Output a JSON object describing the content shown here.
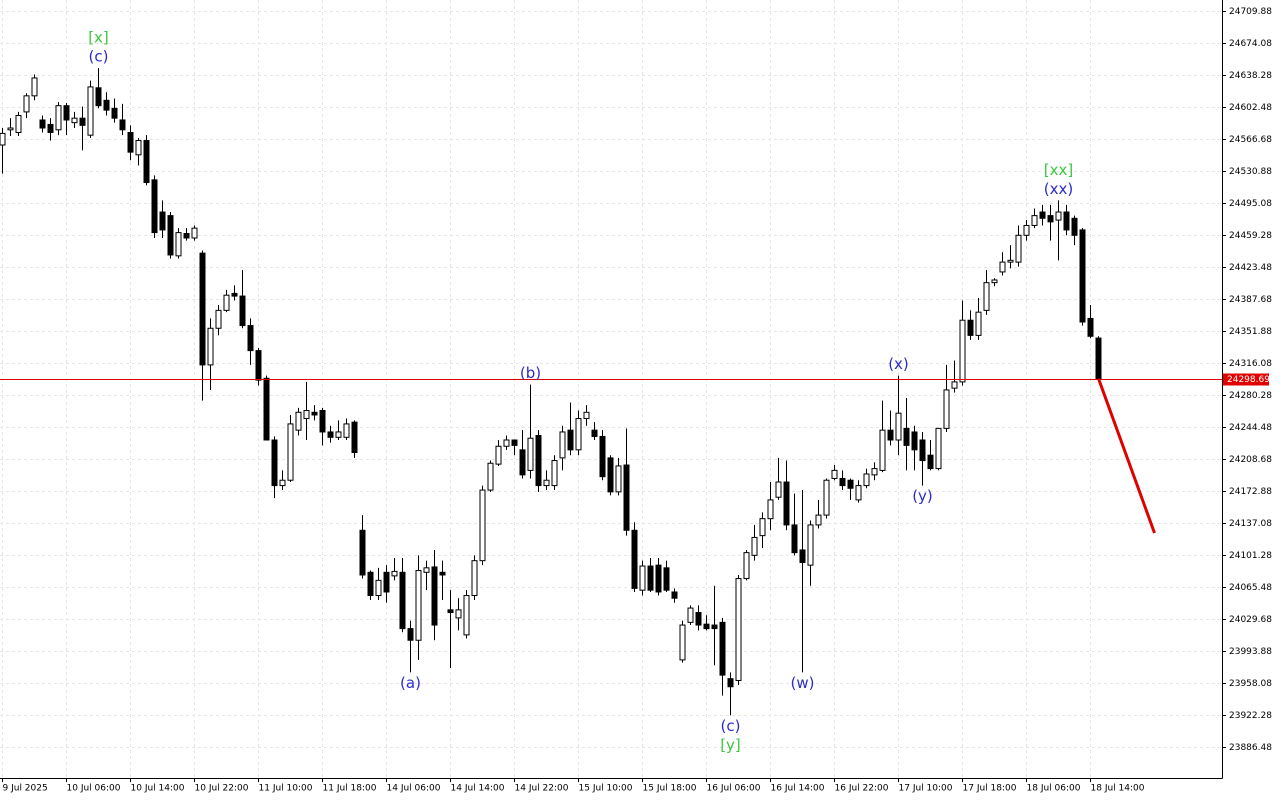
{
  "chart_data": {
    "type": "candlestick",
    "candles": {
      "open": [
        24560,
        24577,
        24574,
        24597,
        24615,
        24588,
        24583,
        24577,
        24604,
        24585,
        24590,
        24571,
        24624,
        24610,
        24601,
        24588,
        24574,
        24549,
        24565,
        24521,
        24485,
        24481,
        24436,
        24461,
        24456,
        24439,
        24314,
        24355,
        24375,
        24394,
        24391,
        24358,
        24330,
        24299,
        24230,
        24179,
        24185,
        24241,
        24254,
        24261,
        24263,
        24239,
        24233,
        24233,
        24250,
        24129,
        24082,
        24056,
        24082,
        24078,
        24082,
        24019,
        24006,
        24082,
        24088,
        24082,
        24040,
        24031,
        24012,
        24056,
        24095,
        24174,
        24203,
        24223,
        24230,
        24219,
        24196,
        24235,
        24179,
        24179,
        24210,
        24241,
        24219,
        24254,
        24241,
        24234,
        24210,
        24172,
        24202,
        24129,
        24062,
        24089,
        24090,
        24087,
        24060,
        23984,
        24026,
        24037,
        24024,
        24023,
        24026,
        23963,
        23961,
        24075,
        24101,
        24123,
        24142,
        24166,
        24183,
        24135,
        24107,
        24090,
        24135,
        24146,
        24187,
        24187,
        24185,
        24163,
        24179,
        24191,
        24196,
        24241,
        24230,
        24243,
        24239,
        24230,
        24213,
        24198,
        24243,
        24288,
        24295,
        24364,
        24347,
        24375,
        24406,
        24418,
        24429,
        24429,
        24459,
        24470,
        24485,
        24481,
        24476,
        24485,
        24478,
        24465,
        24366,
        24344
      ],
      "high": [
        24579,
        24590,
        24597,
        24618,
        24639,
        24593,
        24590,
        24608,
        24607,
        24597,
        24603,
        24632,
        24646,
        24619,
        24612,
        24606,
        24582,
        24568,
        24571,
        24526,
        24498,
        24485,
        24467,
        24467,
        24470,
        24442,
        24366,
        24381,
        24398,
        24403,
        24420,
        24366,
        24333,
        24302,
        24234,
        24196,
        24258,
        24266,
        24295,
        24269,
        24266,
        24246,
        24252,
        24254,
        24252,
        24146,
        24084,
        24087,
        24090,
        24098,
        24098,
        24028,
        24101,
        24095,
        24107,
        24095,
        24062,
        24053,
        24062,
        24101,
        24179,
        24207,
        24230,
        24235,
        24230,
        24241,
        24292,
        24241,
        24196,
        24213,
        24246,
        24272,
        24263,
        24269,
        24250,
        24241,
        24213,
        24210,
        24243,
        24138,
        24095,
        24098,
        24098,
        24095,
        24064,
        24028,
        24045,
        24045,
        24034,
        24067,
        24031,
        23970,
        24079,
        24107,
        24135,
        24149,
        24183,
        24210,
        24207,
        24170,
        24174,
        24140,
        24163,
        24187,
        24202,
        24196,
        24187,
        24185,
        24198,
        24205,
        24274,
        24263,
        24302,
        24277,
        24246,
        24239,
        24230,
        24213,
        24314,
        24319,
        24386,
        24375,
        24389,
        24420,
        24411,
        24440,
        24448,
        24470,
        24476,
        24489,
        24493,
        24493,
        24498,
        24493,
        24481,
        24467,
        24381,
        24346
      ],
      "low": [
        24528,
        24570,
        24570,
        24590,
        24610,
        24574,
        24565,
        24571,
        24571,
        24579,
        24554,
        24568,
        24601,
        24593,
        24585,
        24571,
        24543,
        24537,
        24515,
        24456,
        24456,
        24433,
        24433,
        24453,
        24453,
        24274,
        24286,
        24347,
        24373,
        24386,
        24355,
        24314,
        24291,
        24230,
        24165,
        24174,
        24183,
        24235,
        24230,
        24252,
        24224,
        24227,
        24230,
        24230,
        24210,
        24075,
        24051,
        24051,
        24048,
        24073,
        24015,
        23970,
        23984,
        24062,
        24006,
        24051,
        23975,
        24017,
        24008,
        24051,
        24090,
        24172,
        24201,
        24219,
        24213,
        24187,
        24187,
        24172,
        24174,
        24174,
        24196,
        24213,
        24213,
        24246,
        24230,
        24185,
        24168,
        24168,
        24123,
        24060,
        24056,
        24060,
        24056,
        24060,
        24048,
        23981,
        24023,
        24017,
        24017,
        23978,
        23944,
        23922,
        23956,
        24073,
        24095,
        24109,
        24129,
        24163,
        24129,
        24101,
        23970,
        24067,
        24131,
        24142,
        24185,
        24174,
        24163,
        24160,
        24176,
        24185,
        24194,
        24224,
        24213,
        24196,
        24196,
        24179,
        24196,
        24196,
        24239,
        24283,
        24291,
        24342,
        24342,
        24370,
        24402,
        24414,
        24422,
        24424,
        24453,
        24467,
        24470,
        24453,
        24431,
        24459,
        24448,
        24358,
        24344,
        24298.69
      ],
      "close": [
        24573,
        24579,
        24593,
        24615,
        24635,
        24579,
        24574,
        24604,
        24588,
        24590,
        24582,
        24625,
        24604,
        24599,
        24590,
        24577,
        24552,
        24565,
        24518,
        24462,
        24465,
        24437,
        24462,
        24456,
        24467,
        24314,
        24355,
        24375,
        24392,
        24391,
        24358,
        24330,
        24297,
        24230,
        24179,
        24185,
        24248,
        24261,
        24263,
        24258,
        24239,
        24233,
        24239,
        24248,
        24216,
        24079,
        24056,
        24073,
        24060,
        24083,
        24019,
        24006,
        24084,
        24087,
        24023,
        24079,
        24037,
        24040,
        24056,
        24095,
        24174,
        24204,
        24223,
        24230,
        24224,
        24191,
        24232,
        24179,
        24185,
        24207,
        24239,
        24219,
        24254,
        24261,
        24234,
        24189,
        24172,
        24201,
        24129,
        24064,
        24089,
        24062,
        24060,
        24062,
        24053,
        24023,
        24042,
        24023,
        24019,
        24019,
        23967,
        23954,
        24075,
        24104,
        24121,
        24142,
        24163,
        24183,
        24135,
        24104,
        24093,
        24135,
        24146,
        24185,
        24196,
        24179,
        24176,
        24179,
        24192,
        24198,
        24241,
        24230,
        24260,
        24224,
        24219,
        24207,
        24198,
        24243,
        24286,
        24295,
        24364,
        24347,
        24373,
        24406,
        24409,
        24429,
        24431,
        24459,
        24470,
        24481,
        24478,
        24474,
        24485,
        24465,
        24459,
        24362,
        24346,
        24298.69
      ],
      "up_color": "#ffffff",
      "down_color": "#000000"
    },
    "ylim": [
      23851.9,
      24722.2
    ],
    "yticks": [
      24709.88,
      24674.08,
      24638.28,
      24602.48,
      24566.68,
      24530.88,
      24495.08,
      24459.28,
      24423.48,
      24387.68,
      24351.88,
      24316.08,
      24280.28,
      24244.48,
      24208.68,
      24172.88,
      24137.08,
      24101.28,
      24065.48,
      24029.68,
      23993.88,
      23958.08,
      23922.28,
      23886.48
    ],
    "xticks": [
      {
        "value": 0,
        "label": "9 Jul 2025"
      },
      {
        "value": 8,
        "label": "10 Jul 06:00"
      },
      {
        "value": 16,
        "label": "10 Jul 14:00"
      },
      {
        "value": 24,
        "label": "10 Jul 22:00"
      },
      {
        "value": 32,
        "label": "11 Jul 10:00"
      },
      {
        "value": 40,
        "label": "11 Jul 18:00"
      },
      {
        "value": 48,
        "label": "14 Jul 06:00"
      },
      {
        "value": 56,
        "label": "14 Jul 14:00"
      },
      {
        "value": 64,
        "label": "14 Jul 22:00"
      },
      {
        "value": 72,
        "label": "15 Jul 10:00"
      },
      {
        "value": 80,
        "label": "15 Jul 18:00"
      },
      {
        "value": 88,
        "label": "16 Jul 06:00"
      },
      {
        "value": 96,
        "label": "16 Jul 14:00"
      },
      {
        "value": 104,
        "label": "16 Jul 22:00"
      },
      {
        "value": 112,
        "label": "17 Jul 10:00"
      },
      {
        "value": 120,
        "label": "17 Jul 18:00"
      },
      {
        "value": 128,
        "label": "18 Jul 06:00"
      },
      {
        "value": 136,
        "label": "18 Jul 14:00"
      }
    ],
    "grid": true,
    "current": {
      "value": 24298.69,
      "color": "#e00000"
    },
    "projection": {
      "x": [
        137,
        144
      ],
      "values": [
        24298.69,
        24126
      ],
      "color": "#e00000"
    },
    "annotations": [
      {
        "text": "(c)",
        "candle": 12,
        "at": "high",
        "color": "#2b2bd0"
      },
      {
        "text": "[x]",
        "candle": 12,
        "at": "high",
        "color": "#3cc83c"
      },
      {
        "text": "(a)",
        "candle": 51,
        "at": "low",
        "color": "#2b2bd0"
      },
      {
        "text": "(b)",
        "candle": 66,
        "at": "high",
        "color": "#2b2bd0"
      },
      {
        "text": "(c)",
        "candle": 91,
        "at": "low",
        "color": "#2b2bd0"
      },
      {
        "text": "[y]",
        "candle": 91,
        "at": "low",
        "color": "#3cc83c"
      },
      {
        "text": "(w)",
        "candle": 100,
        "at": "low",
        "color": "#2b2bd0"
      },
      {
        "text": "(x)",
        "candle": 112,
        "at": "high",
        "color": "#2b2bd0"
      },
      {
        "text": "(y)",
        "candle": 115,
        "at": "low",
        "color": "#2b2bd0"
      },
      {
        "text": "(xx)",
        "candle": 132,
        "at": "high",
        "color": "#2b2bd0"
      },
      {
        "text": "[xx]",
        "candle": 132,
        "at": "high",
        "color": "#3cc83c"
      }
    ]
  }
}
